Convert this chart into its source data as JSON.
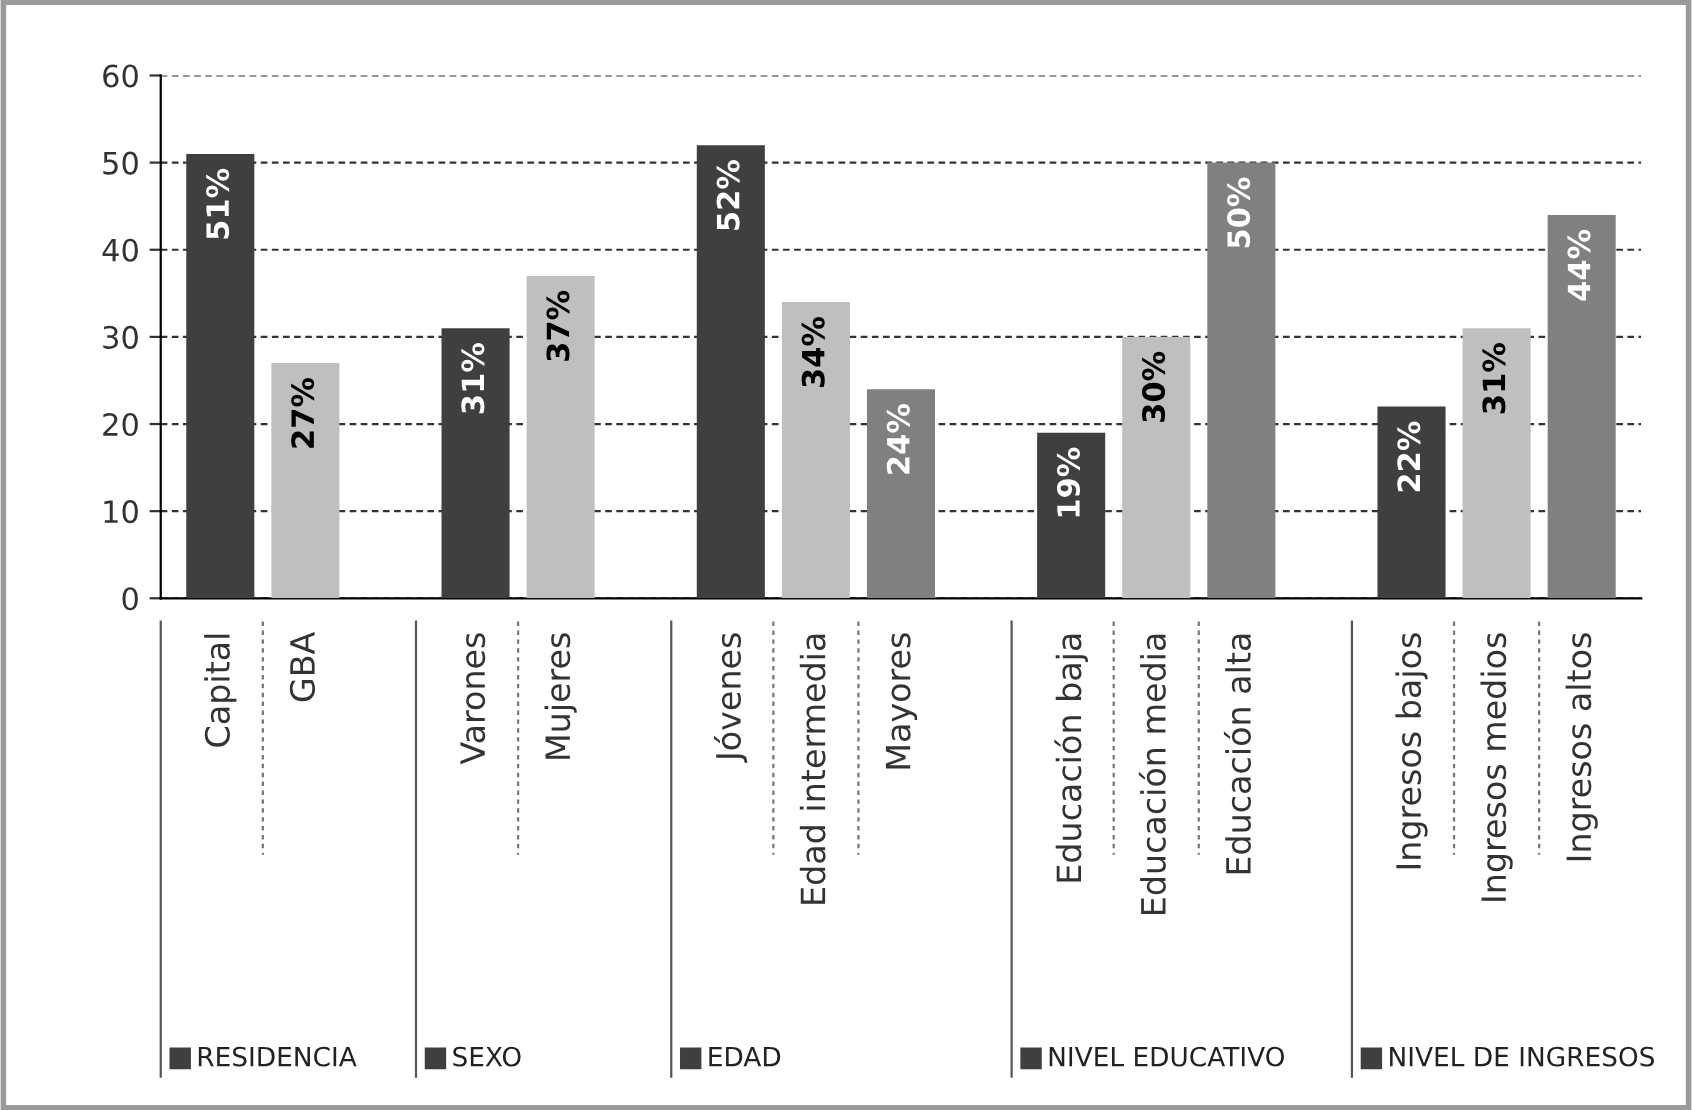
{
  "chart_data": {
    "type": "bar",
    "categories": [
      "Capital",
      "GBA",
      null,
      "Varones",
      "Mujeres",
      null,
      "Jóvenes",
      "Edad intermedia",
      "Mayores",
      null,
      "Educación baja",
      "Educación media",
      "Educación alta",
      null,
      "Ingresos bajos",
      "Ingresos medios",
      "Ingresos altos"
    ],
    "values": [
      51,
      27,
      null,
      31,
      37,
      null,
      52,
      34,
      24,
      null,
      19,
      30,
      50,
      null,
      22,
      31,
      44
    ],
    "value_labels": [
      "51%",
      "27%",
      null,
      "31%",
      "37%",
      null,
      "52%",
      "34%",
      "24%",
      null,
      "19%",
      "30%",
      "50%",
      null,
      "22%",
      "31%",
      "44%"
    ],
    "colors": [
      "#3f3f3f",
      "#bfbfbf",
      "#ffffff",
      "#3f3f3f",
      "#bfbfbf",
      "#ffffff",
      "#3f3f3f",
      "#bfbfbf",
      "#808080",
      "#ffffff",
      "#3f3f3f",
      "#bfbfbf",
      "#808080",
      "#ffffff",
      "#3f3f3f",
      "#bfbfbf",
      "#808080"
    ],
    "ylim": [
      0,
      60
    ],
    "yticks": [
      0,
      10,
      20,
      30,
      40,
      50,
      60
    ],
    "grid": "y",
    "legend": false,
    "annotations": [
      "RESIDENCIA",
      "SEXO",
      "EDAD",
      "NIVEL EDUCATIVO",
      "NIVEL DE INGRESOS"
    ]
  }
}
